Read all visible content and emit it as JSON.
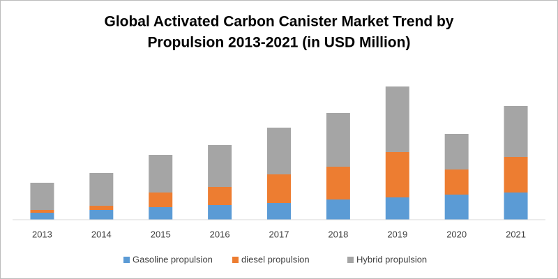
{
  "chart_data": {
    "type": "stacked_bar",
    "title": [
      "Global Activated Carbon Canister Market Trend by",
      "Propulsion 2013-2021 (in USD Million)"
    ],
    "categories": [
      "2013",
      "2014",
      "2015",
      "2016",
      "2017",
      "2018",
      "2019",
      "2020",
      "2021"
    ],
    "series": [
      {
        "name": "Gasoline propulsion",
        "color": "#5b9bd5",
        "values": [
          10,
          14,
          18,
          21,
          24,
          29,
          32,
          36,
          39
        ]
      },
      {
        "name": "diesel propulsion",
        "color": "#ed7d31",
        "values": [
          4,
          6,
          21,
          26,
          41,
          47,
          65,
          36,
          51
        ]
      },
      {
        "name": "Hybrid propulsion",
        "color": "#a5a5a5",
        "values": [
          39,
          47,
          54,
          60,
          67,
          77,
          94,
          51,
          73
        ]
      }
    ],
    "legend": "bottom"
  }
}
